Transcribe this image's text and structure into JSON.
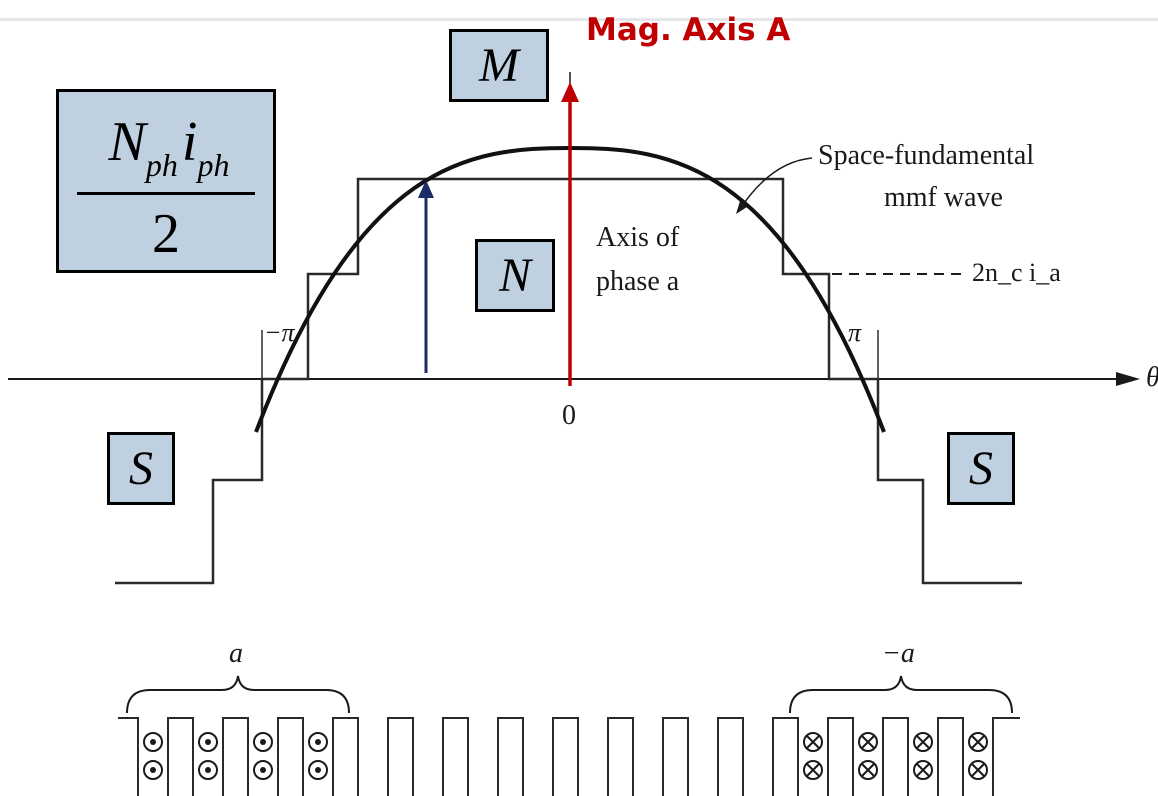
{
  "title_label": "Mag. Axis A",
  "boxes": {
    "m": "M",
    "n": "N",
    "s_left": "S",
    "s_right": "S"
  },
  "formula": {
    "numerator_n": "N",
    "numerator_n_sub": "ph",
    "numerator_i": "i",
    "numerator_i_sub": "ph",
    "denominator": "2"
  },
  "annotations": {
    "wave_line1": "Space-fundamental",
    "wave_line2": "mmf wave",
    "axis_line1": "Axis of",
    "axis_line2": "phase a",
    "amplitude": "2n_c i_a",
    "neg_pi": "−π",
    "pos_pi": "π",
    "zero": "0",
    "theta": "θ",
    "coil_a": "a",
    "coil_neg_a": "−a"
  },
  "colors": {
    "magnetic_axis_arrow": "#c00000",
    "phase_arrow": "#1a2b66",
    "box_fill": "#bfd0e0",
    "title": "#c00000"
  }
}
